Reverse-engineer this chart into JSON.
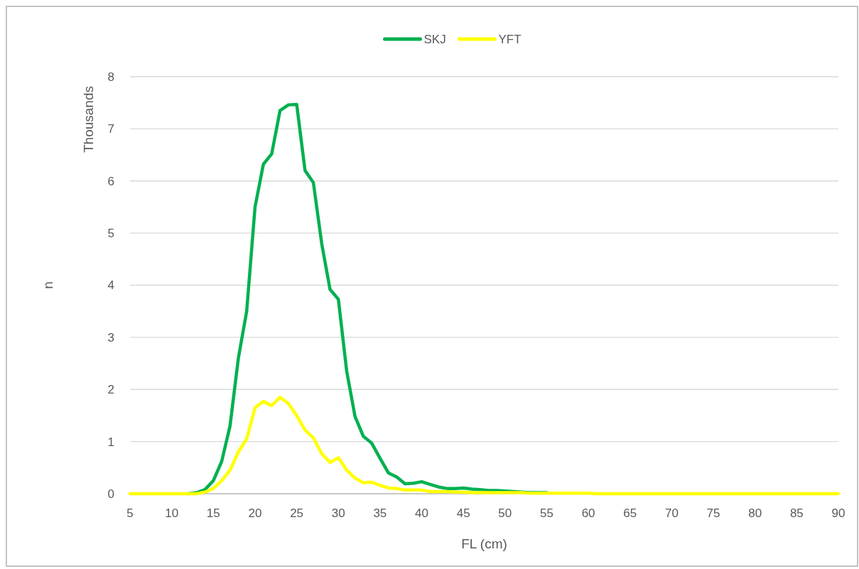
{
  "chart_data": {
    "type": "line",
    "xlabel": "FL (cm)",
    "ylabel": "n",
    "annotations": [
      "Thousands"
    ],
    "x": [
      5,
      6,
      7,
      8,
      9,
      10,
      11,
      12,
      13,
      14,
      15,
      16,
      17,
      18,
      19,
      20,
      21,
      22,
      23,
      24,
      25,
      26,
      27,
      28,
      29,
      30,
      31,
      32,
      33,
      34,
      35,
      36,
      37,
      38,
      39,
      40,
      41,
      42,
      43,
      44,
      45,
      46,
      47,
      48,
      49,
      50,
      51,
      52,
      53,
      54,
      55,
      56,
      57,
      58,
      59,
      60,
      61,
      62,
      63,
      64,
      65,
      66,
      67,
      68,
      69,
      70,
      71,
      72,
      73,
      74,
      75,
      76,
      77,
      78,
      79,
      80,
      81,
      82,
      83,
      84,
      85,
      86,
      87,
      88,
      89,
      90
    ],
    "series": [
      {
        "name": "SKJ",
        "color": "#00b050",
        "values": [
          null,
          null,
          null,
          null,
          null,
          null,
          null,
          0,
          0.02,
          0.08,
          0.25,
          0.62,
          1.3,
          2.6,
          3.5,
          5.5,
          6.32,
          6.52,
          7.35,
          7.46,
          7.47,
          6.2,
          5.97,
          4.8,
          3.92,
          3.73,
          2.35,
          1.48,
          1.1,
          0.97,
          0.68,
          0.4,
          0.32,
          0.19,
          0.2,
          0.23,
          0.18,
          0.13,
          0.1,
          0.1,
          0.11,
          0.09,
          0.08,
          0.06,
          0.06,
          0.05,
          0.04,
          0.03,
          0.02,
          0.02,
          0.02,
          null,
          null,
          null,
          null,
          null,
          null,
          null,
          null,
          null,
          null,
          null,
          null,
          null,
          null,
          null,
          null,
          null,
          null,
          null,
          null,
          null,
          null,
          null,
          null,
          null,
          null,
          null,
          null,
          null,
          null,
          null,
          null,
          null,
          null,
          null
        ]
      },
      {
        "name": "YFT",
        "color": "#ffff00",
        "values": [
          0,
          0,
          0,
          0,
          0,
          0,
          0,
          0,
          0,
          0.03,
          0.1,
          0.25,
          0.45,
          0.8,
          1.05,
          1.65,
          1.77,
          1.69,
          1.85,
          1.73,
          1.5,
          1.22,
          1.07,
          0.77,
          0.6,
          0.69,
          0.45,
          0.3,
          0.21,
          0.22,
          0.16,
          0.11,
          0.1,
          0.07,
          0.07,
          0.07,
          0.04,
          0.04,
          0.04,
          0.03,
          0.03,
          0.02,
          0.02,
          0.02,
          0.02,
          0.02,
          0.02,
          0.02,
          0.01,
          0.01,
          0.01,
          0.01,
          0.01,
          0.01,
          0.01,
          0.01,
          0,
          0,
          0,
          0,
          0,
          0,
          0,
          0,
          0,
          0,
          0,
          0,
          0,
          0,
          0,
          0,
          0,
          0,
          0,
          0,
          0,
          0,
          0,
          0,
          0,
          0,
          0,
          0,
          0,
          0
        ]
      }
    ],
    "xlim": [
      5,
      90
    ],
    "xticks": [
      5,
      10,
      15,
      20,
      25,
      30,
      35,
      40,
      45,
      50,
      55,
      60,
      65,
      70,
      75,
      80,
      85,
      90
    ],
    "ylim": [
      0,
      8
    ],
    "yticks": [
      0,
      1,
      2,
      3,
      4,
      5,
      6,
      7,
      8
    ],
    "grid": "y",
    "legend": "top",
    "marker": "none",
    "line_style": "solid"
  }
}
